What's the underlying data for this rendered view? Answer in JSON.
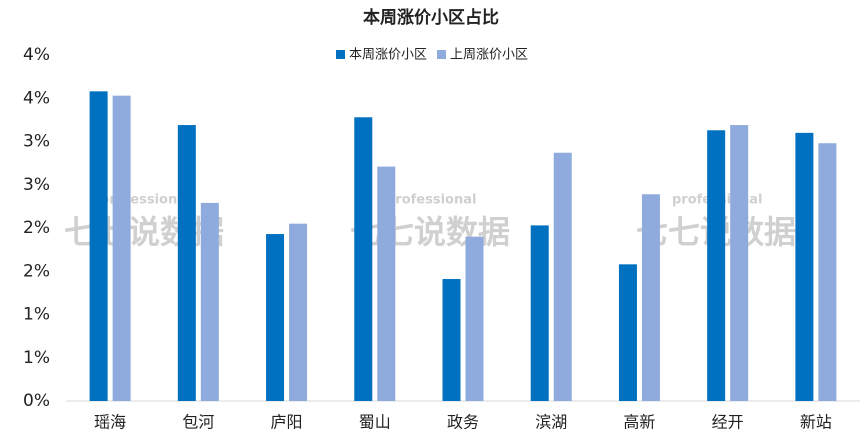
{
  "chart_data": {
    "type": "bar",
    "title": "本周涨价小区占比",
    "categories": [
      "瑶海",
      "包河",
      "庐阳",
      "蜀山",
      "政务",
      "滨湖",
      "高新",
      "经开",
      "新站"
    ],
    "series": [
      {
        "name": "本周涨价小区",
        "color": "#0070c0",
        "values": [
          3.58,
          3.19,
          1.93,
          3.28,
          1.41,
          2.03,
          1.58,
          3.13,
          3.1
        ]
      },
      {
        "name": "上周涨价小区",
        "color": "#8faadc",
        "values": [
          3.53,
          2.29,
          2.05,
          2.71,
          1.9,
          2.87,
          2.39,
          3.19,
          2.98
        ]
      }
    ],
    "ylim": [
      0,
      4
    ],
    "yticks": [
      {
        "value": 0,
        "label": "0%"
      },
      {
        "value": 0.5,
        "label": "1%"
      },
      {
        "value": 1,
        "label": "1%"
      },
      {
        "value": 1.5,
        "label": "2%"
      },
      {
        "value": 2,
        "label": "2%"
      },
      {
        "value": 2.5,
        "label": "3%"
      },
      {
        "value": 3,
        "label": "3%"
      },
      {
        "value": 3.5,
        "label": "4%"
      },
      {
        "value": 4,
        "label": "4%"
      }
    ],
    "legend": "top",
    "watermarks": [
      {
        "tag": "professional",
        "brand": "七七说数据"
      },
      {
        "tag": "professional",
        "brand": "七七说数据"
      },
      {
        "tag": "professional",
        "brand": "七七说数据"
      }
    ]
  }
}
